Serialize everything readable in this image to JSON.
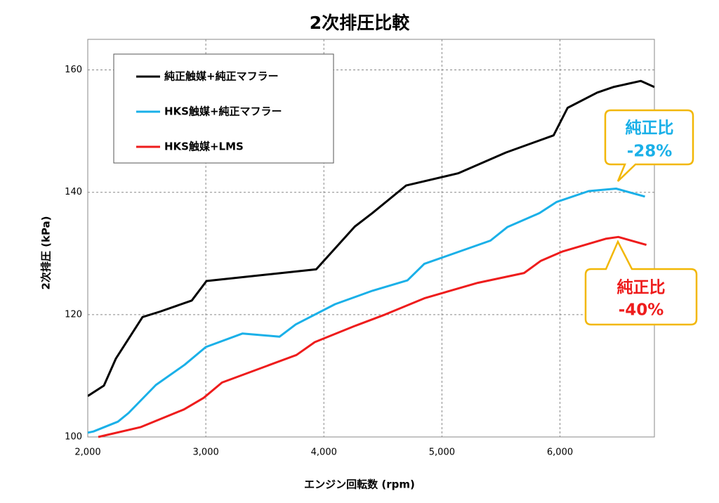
{
  "chart_data": {
    "type": "line",
    "title": "2次排圧比較",
    "x_label": "エンジン回転数 (rpm)",
    "y_label": "2次排圧 (kPa)",
    "xlim": [
      2000,
      6800
    ],
    "ylim": [
      100,
      165
    ],
    "xticks": [
      {
        "value": 2000,
        "label": "2,000"
      },
      {
        "value": 3000,
        "label": "3,000"
      },
      {
        "value": 4000,
        "label": "4,000"
      },
      {
        "value": 5000,
        "label": "5,000"
      },
      {
        "value": 6000,
        "label": "6,000"
      }
    ],
    "yticks": [
      100,
      120,
      140,
      160
    ],
    "grid": true,
    "legend": "upper left",
    "series": [
      {
        "name": "純正触媒+純正マフラー",
        "color": "#000000",
        "x": [
          2000,
          2137,
          2238,
          2464,
          2613,
          2881,
          3006,
          3935,
          4262,
          4411,
          4696,
          5137,
          5542,
          5946,
          6065,
          6315,
          6452,
          6685,
          6800
        ],
        "values": [
          106.7,
          108.4,
          112.8,
          119.6,
          120.5,
          122.3,
          125.5,
          127.4,
          134.4,
          136.6,
          141.1,
          143.1,
          146.5,
          149.3,
          153.8,
          156.3,
          157.2,
          158.2,
          157.2
        ]
      },
      {
        "name": "HKS触媒+純正マフラー",
        "color": "#1ab0e8",
        "x": [
          2000,
          2048,
          2256,
          2345,
          2577,
          2821,
          3000,
          3310,
          3625,
          3762,
          4095,
          4411,
          4708,
          4851,
          5411,
          5554,
          5827,
          5970,
          6244,
          6476,
          6720
        ],
        "values": [
          100.7,
          100.9,
          102.5,
          103.9,
          108.5,
          111.8,
          114.7,
          116.9,
          116.4,
          118.4,
          121.7,
          123.9,
          125.6,
          128.3,
          132.1,
          134.3,
          136.6,
          138.4,
          140.2,
          140.6,
          139.3
        ]
      },
      {
        "name": "HKS触媒+LMS",
        "color": "#ee1c1c",
        "x": [
          2089,
          2446,
          2815,
          2982,
          3137,
          3768,
          3923,
          4256,
          4518,
          4857,
          5304,
          5696,
          5839,
          6018,
          6387,
          6494,
          6732
        ],
        "values": [
          100.0,
          101.6,
          104.5,
          106.4,
          108.9,
          113.4,
          115.5,
          118.1,
          120.0,
          122.7,
          125.2,
          126.8,
          128.8,
          130.3,
          132.4,
          132.7,
          131.4
        ]
      }
    ],
    "annotations": [
      {
        "lines": [
          "純正比",
          "-28%"
        ],
        "color": "#1ab0e8"
      },
      {
        "lines": [
          "純正比",
          "-40%"
        ],
        "color": "#ee1c1c"
      }
    ]
  }
}
